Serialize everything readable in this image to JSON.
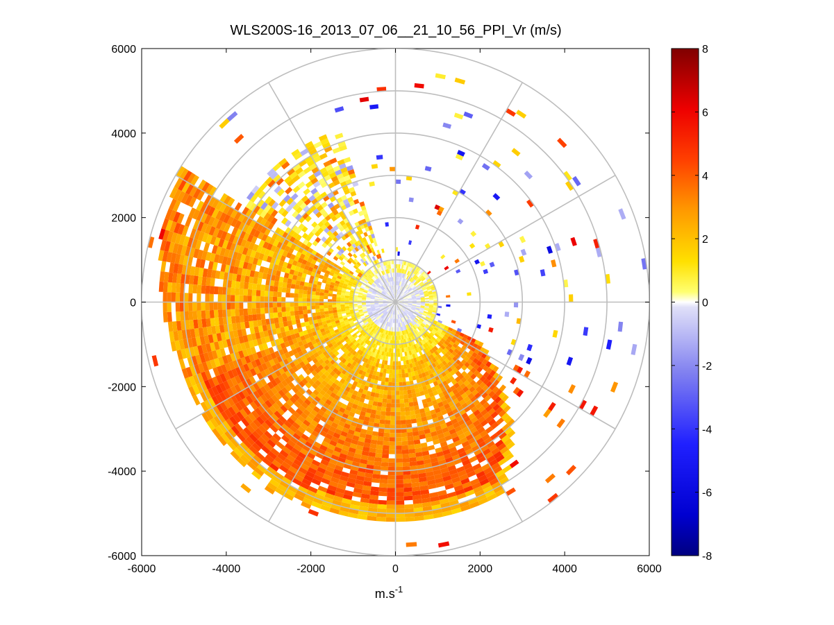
{
  "chart_data": {
    "type": "heatmap",
    "subtype": "polar-ppi-scan",
    "title": "WLS200S-16_2013_07_06__21_10_56_PPI_Vr (m/s)",
    "xlabel": "m.s",
    "xlabel_superscript": "-1",
    "ylabel": "",
    "xlim": [
      -6000,
      6000
    ],
    "ylim": [
      -6000,
      6000
    ],
    "x_ticks": [
      "-6000",
      "-4000",
      "-2000",
      "0",
      "2000",
      "4000",
      "6000"
    ],
    "y_ticks": [
      "6000",
      "4000",
      "2000",
      "0",
      "-2000",
      "-4000",
      "-6000"
    ],
    "grid": "polar",
    "range_rings_m": [
      1000,
      2000,
      3000,
      4000,
      5000,
      6000
    ],
    "spoke_step_deg": 30,
    "colorbar": {
      "limits": [
        -8,
        8
      ],
      "tick_labels": [
        "8",
        "6",
        "4",
        "2",
        "0",
        "-2",
        "-4",
        "-6",
        "-8"
      ],
      "placement": "right"
    },
    "field_summary": {
      "max_range_m": 6000,
      "gate_spacing_m": 100,
      "near_field_m": 1000,
      "near_field_vr": [
        -1.0,
        0.6
      ],
      "dense_sector_vr": [
        0.8,
        5.0
      ],
      "dense_sector_azimuth_deg": [
        100,
        300
      ],
      "outer_returns": "sparse"
    }
  }
}
